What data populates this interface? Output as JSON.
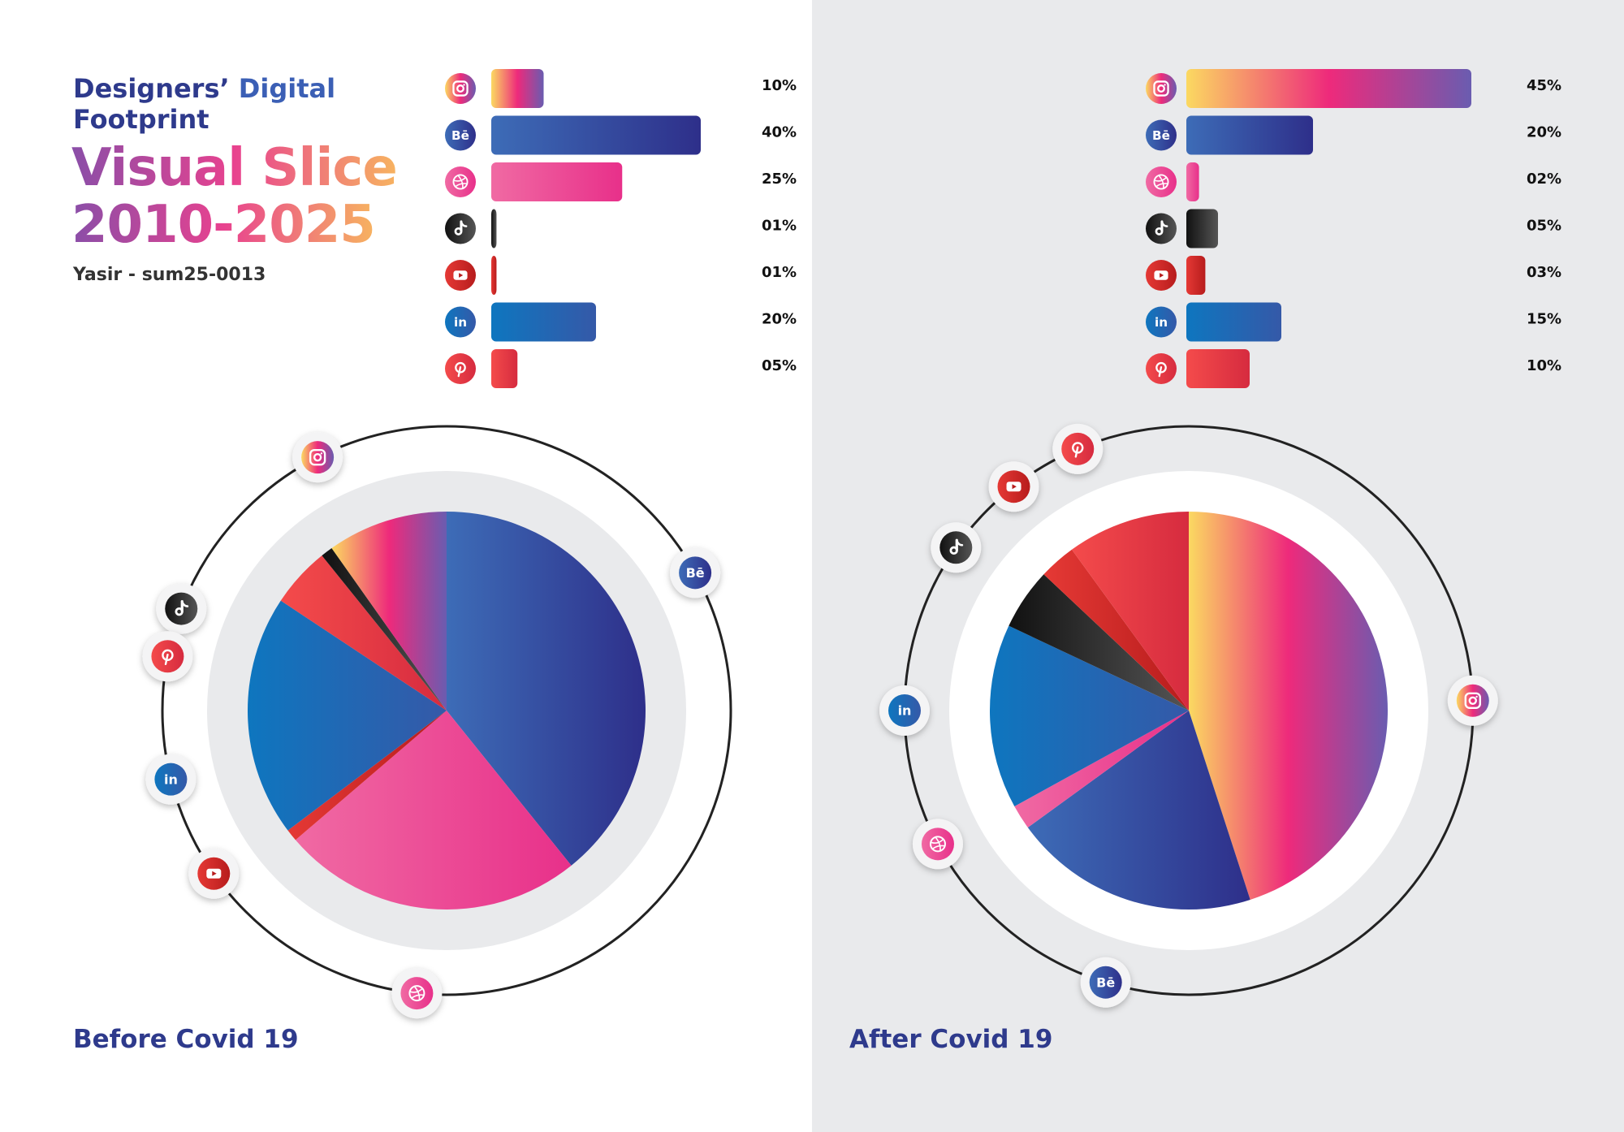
{
  "header": {
    "title_part1": "Designers’",
    "title_part2": "Digital",
    "title_line2": "Footprint",
    "title_visual": "Visual Slice",
    "title_years": "2010-2025",
    "author": "Yasir - sum25-0013"
  },
  "icons": {
    "instagram": "instagram-icon",
    "behance": "behance-icon",
    "dribbble": "dribbble-icon",
    "tiktok": "tiktok-icon",
    "youtube": "youtube-icon",
    "linkedin": "linkedin-icon",
    "pinterest": "pinterest-icon"
  },
  "colors": {
    "instagram": [
      "#fbd961",
      "#ee2a7b",
      "#6a5cb0"
    ],
    "behance": [
      "#3d6cb7",
      "#2e2f8a"
    ],
    "dribbble": [
      "#f06aa3",
      "#e8308a"
    ],
    "tiktok": [
      "#111111",
      "#555555"
    ],
    "youtube": [
      "#e53935",
      "#b71c1c"
    ],
    "linkedin": [
      "#0e76bf",
      "#3559a8"
    ],
    "pinterest": [
      "#f44b4b",
      "#d62b3f"
    ]
  },
  "chart_data": [
    {
      "type": "bar",
      "orientation": "horizontal",
      "categories": [
        "Instagram",
        "Behance",
        "Dribbble",
        "TikTok",
        "YouTube",
        "LinkedIn",
        "Pinterest"
      ],
      "values": [
        10,
        40,
        25,
        1,
        1,
        20,
        5
      ],
      "labels": [
        "10%",
        "40%",
        "25%",
        "01%",
        "01%",
        "20%",
        "05%"
      ]
    },
    {
      "type": "pie",
      "caption": "Before Covid 19",
      "slices": [
        {
          "key": "behance",
          "value": 40
        },
        {
          "key": "dribbble",
          "value": 25
        },
        {
          "key": "youtube",
          "value": 1
        },
        {
          "key": "linkedin",
          "value": 20
        },
        {
          "key": "pinterest",
          "value": 5
        },
        {
          "key": "tiktok",
          "value": 1
        },
        {
          "key": "instagram",
          "value": 10
        }
      ],
      "ring_icons": [
        "instagram",
        "behance",
        "tiktok",
        "pinterest",
        "linkedin",
        "youtube",
        "dribbble"
      ]
    },
    {
      "type": "bar",
      "orientation": "horizontal",
      "categories": [
        "Instagram",
        "Behance",
        "Dribbble",
        "TikTok",
        "YouTube",
        "LinkedIn",
        "Pinterest"
      ],
      "values": [
        45,
        20,
        2,
        5,
        3,
        15,
        10
      ],
      "labels": [
        "45%",
        "20%",
        "02%",
        "05%",
        "03%",
        "15%",
        "10%"
      ]
    },
    {
      "type": "pie",
      "caption": "After Covid 19",
      "slices": [
        {
          "key": "instagram",
          "value": 45
        },
        {
          "key": "behance",
          "value": 20
        },
        {
          "key": "dribbble",
          "value": 2
        },
        {
          "key": "linkedin",
          "value": 15
        },
        {
          "key": "tiktok",
          "value": 5
        },
        {
          "key": "youtube",
          "value": 3
        },
        {
          "key": "pinterest",
          "value": 10
        }
      ],
      "ring_icons": [
        "pinterest",
        "youtube",
        "tiktok",
        "instagram",
        "linkedin",
        "dribbble",
        "behance"
      ]
    }
  ]
}
